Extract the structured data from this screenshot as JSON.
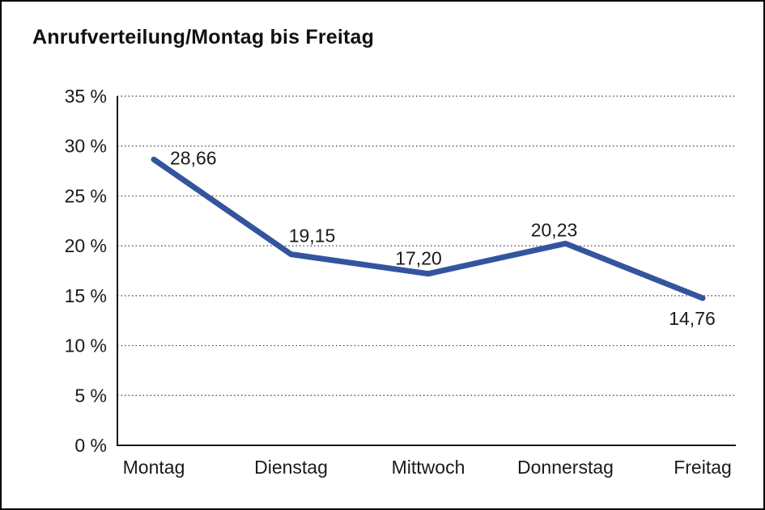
{
  "window": {
    "background": "#ffffff",
    "border_color": "#000000"
  },
  "chart_data": {
    "type": "line",
    "title": "Anrufverteilung/Montag bis Freitag",
    "categories": [
      "Montag",
      "Dienstag",
      "Mittwoch",
      "Donnerstag",
      "Freitag"
    ],
    "values": [
      28.66,
      19.15,
      17.2,
      20.23,
      14.76
    ],
    "value_labels": [
      "28,66",
      "19,15",
      "17,20",
      "20,23",
      "14,76"
    ],
    "xlabel": "",
    "ylabel": "",
    "ylim": [
      0,
      35
    ],
    "y_tick_step": 5,
    "y_tick_labels": [
      "0 %",
      "5 %",
      "10 %",
      "15 %",
      "20 %",
      "25 %",
      "30 %",
      "35 %"
    ],
    "grid": "horizontal-dotted",
    "legend": "none",
    "colors": {
      "line": "#34549e",
      "axis": "#1a1a1a",
      "gridline": "#3c3c3c",
      "text": "#1a1a1a"
    }
  }
}
